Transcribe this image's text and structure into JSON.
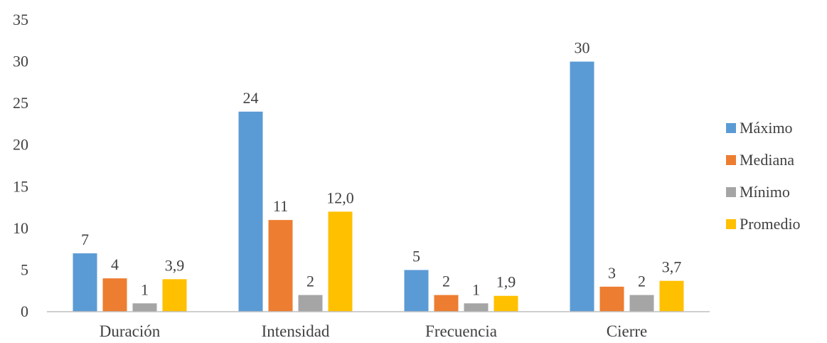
{
  "chart_data": {
    "type": "bar",
    "title": "",
    "xlabel": "",
    "ylabel": "",
    "categories": [
      "Duración",
      "Intensidad",
      "Frecuencia",
      "Cierre"
    ],
    "ylim": [
      0,
      35
    ],
    "yticks": [
      0,
      5,
      10,
      15,
      20,
      25,
      30,
      35
    ],
    "grid": false,
    "legend_position": "right",
    "series": [
      {
        "name": "Máximo",
        "color": "#5B9BD5",
        "values": [
          7,
          24,
          5,
          30
        ],
        "labels": [
          "7",
          "24",
          "5",
          "30"
        ]
      },
      {
        "name": "Mediana",
        "color": "#ED7D31",
        "values": [
          4,
          11,
          2,
          3
        ],
        "labels": [
          "4",
          "11",
          "2",
          "3"
        ]
      },
      {
        "name": "Mínimo",
        "color": "#A5A5A5",
        "values": [
          1,
          2,
          1,
          2
        ],
        "labels": [
          "1",
          "2",
          "1",
          "2"
        ]
      },
      {
        "name": "Promedio",
        "color": "#FFC000",
        "values": [
          3.9,
          12.0,
          1.9,
          3.7
        ],
        "labels": [
          "3,9",
          "12,0",
          "1,9",
          "3,7"
        ]
      }
    ]
  }
}
